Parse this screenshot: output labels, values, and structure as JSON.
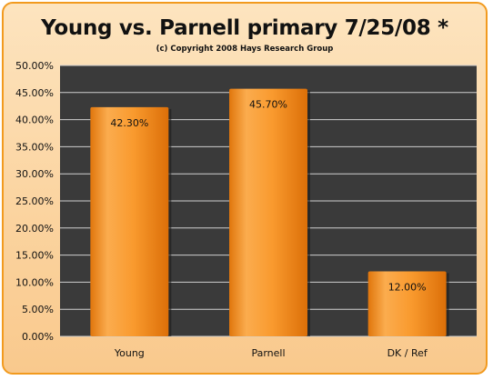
{
  "colors": {
    "frame_border": "#f29a1e",
    "frame_fill": "#fbd4a0",
    "plot_background": "#3a3a3a",
    "gridline": "#cfcfcf",
    "bar_fill": "#f7941d"
  },
  "chart_data": {
    "type": "bar",
    "title": "Young vs. Parnell primary 7/25/08  *",
    "subtitle": "(c) Copyright 2008 Hays Research Group",
    "categories": [
      "Young",
      "Parnell",
      "DK / Ref"
    ],
    "values": [
      42.3,
      45.7,
      12.0
    ],
    "value_labels": [
      "42.30%",
      "45.70%",
      "12.00%"
    ],
    "ylim": [
      0,
      50
    ],
    "y_ticks": [
      "0.00%",
      "5.00%",
      "10.00%",
      "15.00%",
      "20.00%",
      "25.00%",
      "30.00%",
      "35.00%",
      "40.00%",
      "45.00%",
      "50.00%"
    ],
    "grid": true,
    "legend": "none"
  }
}
